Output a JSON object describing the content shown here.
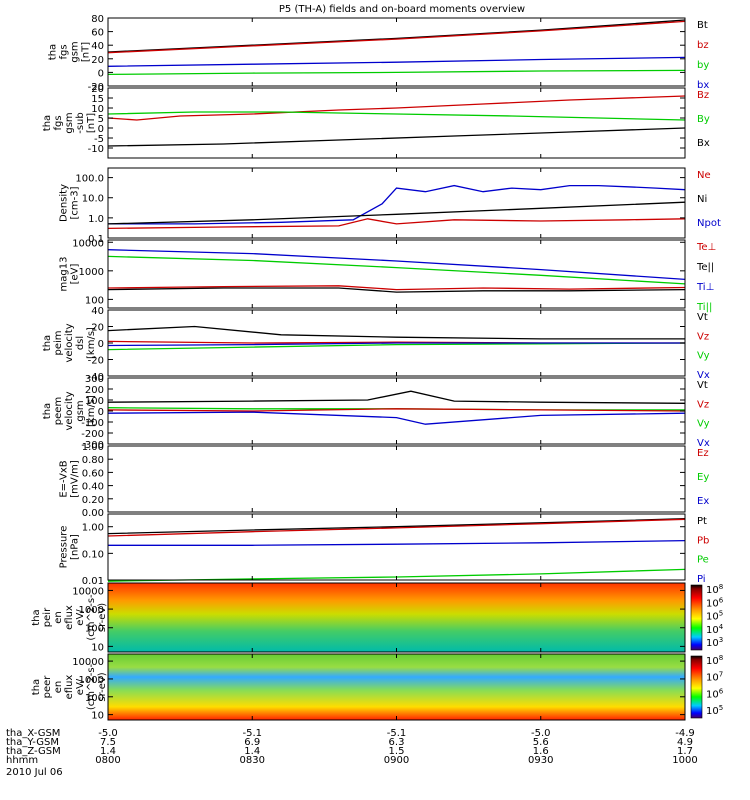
{
  "title": "P5 (TH-A) fields and on-board moments overview",
  "chart_data": [
    {
      "type": "line",
      "ylabel_lines": [
        "tha",
        "fgs",
        "gsm",
        "[nT]"
      ],
      "ylim": [
        -20,
        80
      ],
      "yticks": [
        "80",
        "60",
        "40",
        "20",
        "0",
        "-20"
      ],
      "legend": [
        {
          "label": "Bt",
          "color": "#000000"
        },
        {
          "label": "bz",
          "color": "#cc0000"
        },
        {
          "label": "by",
          "color": "#00cc00"
        },
        {
          "label": "bx",
          "color": "#0000cc"
        }
      ],
      "series": [
        {
          "color": "#000000",
          "x": [
            0,
            0.5,
            1.0,
            1.5,
            2.0
          ],
          "y": [
            30,
            40,
            50,
            62,
            77
          ]
        },
        {
          "color": "#cc0000",
          "x": [
            0,
            0.5,
            1.0,
            1.5,
            2.0
          ],
          "y": [
            29,
            39,
            49,
            61,
            75
          ]
        },
        {
          "color": "#0000cc",
          "x": [
            0,
            0.5,
            1.0,
            1.5,
            2.0
          ],
          "y": [
            9,
            12,
            15,
            19,
            22
          ]
        },
        {
          "color": "#00cc00",
          "x": [
            0,
            0.5,
            1.0,
            1.5,
            2.0
          ],
          "y": [
            -3,
            -1,
            0,
            2,
            3
          ]
        }
      ]
    },
    {
      "type": "line",
      "ylabel_lines": [
        "tha",
        "fgs",
        "gsm",
        "-sub",
        "[nT]"
      ],
      "ylim": [
        -15,
        20
      ],
      "yticks": [
        "20",
        "15",
        "10",
        "5",
        "0",
        "-5",
        "-10"
      ],
      "legend": [
        {
          "label": "Bz",
          "color": "#cc0000"
        },
        {
          "label": "By",
          "color": "#00cc00"
        },
        {
          "label": "Bx",
          "color": "#000000"
        }
      ],
      "series": [
        {
          "color": "#cc0000",
          "x": [
            0,
            0.1,
            0.25,
            0.5,
            0.8,
            1.0,
            1.3,
            1.6,
            2.0
          ],
          "y": [
            5,
            4,
            6,
            7,
            9,
            10,
            12,
            14,
            16
          ]
        },
        {
          "color": "#00cc00",
          "x": [
            0,
            0.3,
            0.6,
            1.0,
            1.4,
            1.7,
            2.0
          ],
          "y": [
            7,
            8,
            8,
            7,
            6,
            5,
            4
          ]
        },
        {
          "color": "#000000",
          "x": [
            0,
            0.4,
            0.8,
            1.2,
            1.6,
            2.0
          ],
          "y": [
            -9,
            -8,
            -6,
            -4,
            -2,
            0
          ]
        }
      ]
    },
    {
      "type": "line",
      "log": true,
      "ylabel_lines": [
        "Density",
        "[cm-3]"
      ],
      "ylim": [
        0.1,
        300
      ],
      "yticks": [
        "100.0",
        "10.0",
        "1.0",
        "0.1"
      ],
      "legend": [
        {
          "label": "Ne",
          "color": "#cc0000"
        },
        {
          "label": "Ni",
          "color": "#000000"
        },
        {
          "label": "Npot",
          "color": "#0000cc"
        }
      ],
      "series": [
        {
          "color": "#0000cc",
          "x": [
            0,
            0.3,
            0.6,
            0.85,
            0.95,
            1.0,
            1.1,
            1.2,
            1.3,
            1.4,
            1.5,
            1.6,
            1.7,
            1.8,
            1.9,
            2.0
          ],
          "y": [
            0.5,
            0.5,
            0.6,
            0.8,
            5,
            30,
            20,
            40,
            20,
            30,
            25,
            40,
            40,
            35,
            30,
            25
          ]
        },
        {
          "color": "#cc0000",
          "x": [
            0,
            0.4,
            0.8,
            0.9,
            1.0,
            1.2,
            1.5,
            1.8,
            2.0
          ],
          "y": [
            0.3,
            0.35,
            0.4,
            0.9,
            0.5,
            0.8,
            0.7,
            0.8,
            0.9
          ]
        },
        {
          "color": "#000000",
          "x": [
            0,
            0.5,
            1.0,
            1.5,
            2.0
          ],
          "y": [
            0.5,
            0.8,
            1.5,
            3,
            6
          ]
        }
      ]
    },
    {
      "type": "line",
      "log": true,
      "ylabel_lines": [
        "mag13",
        "[eV]"
      ],
      "ylim": [
        50,
        12000
      ],
      "yticks": [
        "10000",
        "1000",
        "100"
      ],
      "legend": [
        {
          "label": "Te⊥",
          "color": "#cc0000"
        },
        {
          "label": "Te||",
          "color": "#000000"
        },
        {
          "label": "Ti⊥",
          "color": "#0000cc"
        },
        {
          "label": "Ti||",
          "color": "#00cc00"
        }
      ],
      "series": [
        {
          "color": "#0000cc",
          "x": [
            0,
            0.5,
            1.0,
            1.5,
            2.0
          ],
          "y": [
            5500,
            4000,
            2200,
            1100,
            500
          ]
        },
        {
          "color": "#00cc00",
          "x": [
            0,
            0.5,
            1.0,
            1.5,
            2.0
          ],
          "y": [
            3200,
            2300,
            1300,
            700,
            350
          ]
        },
        {
          "color": "#cc0000",
          "x": [
            0,
            0.4,
            0.8,
            1.0,
            1.3,
            1.6,
            2.0
          ],
          "y": [
            250,
            280,
            300,
            220,
            250,
            230,
            260
          ]
        },
        {
          "color": "#000000",
          "x": [
            0,
            0.4,
            0.8,
            1.0,
            1.3,
            1.6,
            2.0
          ],
          "y": [
            220,
            250,
            250,
            180,
            200,
            200,
            220
          ]
        }
      ]
    },
    {
      "type": "line",
      "ylabel_lines": [
        "tha",
        "peim",
        "velocity",
        "dsl",
        "[km/s]"
      ],
      "ylim": [
        -40,
        40
      ],
      "yticks": [
        "40",
        "20",
        "0",
        "-20",
        "-40"
      ],
      "legend": [
        {
          "label": "Vt",
          "color": "#000000"
        },
        {
          "label": "Vz",
          "color": "#cc0000"
        },
        {
          "label": "Vy",
          "color": "#00cc00"
        },
        {
          "label": "Vx",
          "color": "#0000cc"
        }
      ],
      "series": [
        {
          "color": "#000000",
          "x": [
            0,
            0.3,
            0.6,
            1.0,
            1.5,
            2.0
          ],
          "y": [
            15,
            20,
            10,
            7,
            5,
            5
          ]
        },
        {
          "color": "#cc0000",
          "x": [
            0,
            0.5,
            1.0,
            1.5,
            2.0
          ],
          "y": [
            2,
            0,
            1,
            0,
            0
          ]
        },
        {
          "color": "#00cc00",
          "x": [
            0,
            0.5,
            1.0,
            1.5,
            2.0
          ],
          "y": [
            -8,
            -5,
            -2,
            -1,
            0
          ]
        },
        {
          "color": "#0000cc",
          "x": [
            0,
            0.5,
            1.0,
            1.5,
            2.0
          ],
          "y": [
            -3,
            -2,
            0,
            0,
            0
          ]
        }
      ]
    },
    {
      "type": "line",
      "ylabel_lines": [
        "tha",
        "peem",
        "velocity",
        "gsm",
        "[km/s]"
      ],
      "ylim": [
        -300,
        300
      ],
      "yticks": [
        "300",
        "200",
        "100",
        "0",
        "-100",
        "-200",
        "-300"
      ],
      "legend": [
        {
          "label": "Vt",
          "color": "#000000"
        },
        {
          "label": "Vz",
          "color": "#cc0000"
        },
        {
          "label": "Vy",
          "color": "#00cc00"
        },
        {
          "label": "Vx",
          "color": "#0000cc"
        }
      ],
      "series": [
        {
          "color": "#000000",
          "x": [
            0,
            0.5,
            0.9,
            1.05,
            1.2,
            1.5,
            2.0
          ],
          "y": [
            80,
            90,
            100,
            180,
            90,
            80,
            70
          ]
        },
        {
          "color": "#00cc00",
          "x": [
            0,
            0.5,
            1.0,
            1.5,
            2.0
          ],
          "y": [
            30,
            20,
            20,
            10,
            10
          ]
        },
        {
          "color": "#cc0000",
          "x": [
            0,
            0.5,
            1.0,
            1.5,
            2.0
          ],
          "y": [
            10,
            0,
            20,
            10,
            0
          ]
        },
        {
          "color": "#0000cc",
          "x": [
            0,
            0.5,
            1.0,
            1.1,
            1.5,
            2.0
          ],
          "y": [
            -20,
            -10,
            -60,
            -120,
            -40,
            -20
          ]
        }
      ]
    },
    {
      "type": "line",
      "ylabel_lines": [
        "E=-VxB",
        "[mV/m]"
      ],
      "ylim": [
        0,
        1
      ],
      "yticks": [
        "1.00",
        "0.80",
        "0.60",
        "0.40",
        "0.20",
        "0.00"
      ],
      "legend": [
        {
          "label": "Ez",
          "color": "#cc0000"
        },
        {
          "label": "Ey",
          "color": "#00cc00"
        },
        {
          "label": "Ex",
          "color": "#0000cc"
        }
      ],
      "series": []
    },
    {
      "type": "line",
      "log": true,
      "ylabel_lines": [
        "Pressure",
        "[nPa]"
      ],
      "ylim": [
        0.01,
        3
      ],
      "yticks": [
        "1.00",
        "0.10",
        "0.01"
      ],
      "legend": [
        {
          "label": "Pt",
          "color": "#000000"
        },
        {
          "label": "Pb",
          "color": "#cc0000"
        },
        {
          "label": "Pe",
          "color": "#00cc00"
        },
        {
          "label": "Pi",
          "color": "#0000cc"
        }
      ],
      "series": [
        {
          "color": "#000000",
          "x": [
            0,
            0.5,
            1.0,
            1.5,
            2.0
          ],
          "y": [
            0.55,
            0.75,
            1.0,
            1.4,
            2.0
          ]
        },
        {
          "color": "#cc0000",
          "x": [
            0,
            0.5,
            1.0,
            1.5,
            2.0
          ],
          "y": [
            0.45,
            0.65,
            0.9,
            1.3,
            1.9
          ]
        },
        {
          "color": "#0000cc",
          "x": [
            0,
            0.5,
            1.0,
            1.5,
            2.0
          ],
          "y": [
            0.2,
            0.2,
            0.22,
            0.25,
            0.3
          ]
        },
        {
          "color": "#00cc00",
          "x": [
            0,
            0.5,
            1.0,
            1.5,
            2.0
          ],
          "y": [
            0.009,
            0.011,
            0.013,
            0.017,
            0.025
          ]
        }
      ]
    },
    {
      "type": "heatmap",
      "ylabel_lines": [
        "tha",
        "peir",
        "en",
        "eflux",
        "eV/",
        "(cm^2-s-",
        "sr-eV)"
      ],
      "yticks": [
        "10000",
        "1000",
        "100",
        "10"
      ],
      "colorbar_ticks": [
        "10^8",
        "10^6",
        "10^5",
        "10^4",
        "10^3"
      ]
    },
    {
      "type": "heatmap",
      "ylabel_lines": [
        "tha",
        "peer",
        "en",
        "eflux",
        "eV/",
        "(cm^2-s-",
        "sr-eV)"
      ],
      "yticks": [
        "10000",
        "1000",
        "100",
        "10"
      ],
      "colorbar_ticks": [
        "10^8",
        "10^7",
        "10^6",
        "10^5"
      ]
    }
  ],
  "footer": {
    "rows": [
      {
        "label": "tha_X-GSM",
        "values": [
          "-5.0",
          "-5.1",
          "-5.1",
          "-5.0",
          "-4.9"
        ]
      },
      {
        "label": "tha_Y-GSM",
        "values": [
          "7.5",
          "6.9",
          "6.3",
          "5.6",
          "4.9"
        ]
      },
      {
        "label": "tha_Z-GSM",
        "values": [
          "1.4",
          "1.4",
          "1.5",
          "1.6",
          "1.7"
        ]
      },
      {
        "label": "hhmm",
        "values": [
          "0800",
          "0830",
          "0900",
          "0930",
          "1000"
        ]
      }
    ],
    "date": "2010 Jul 06"
  },
  "colors": {
    "line_red": "#cc0000",
    "line_green": "#00cc00",
    "line_blue": "#0000cc",
    "frame": "#000000"
  }
}
